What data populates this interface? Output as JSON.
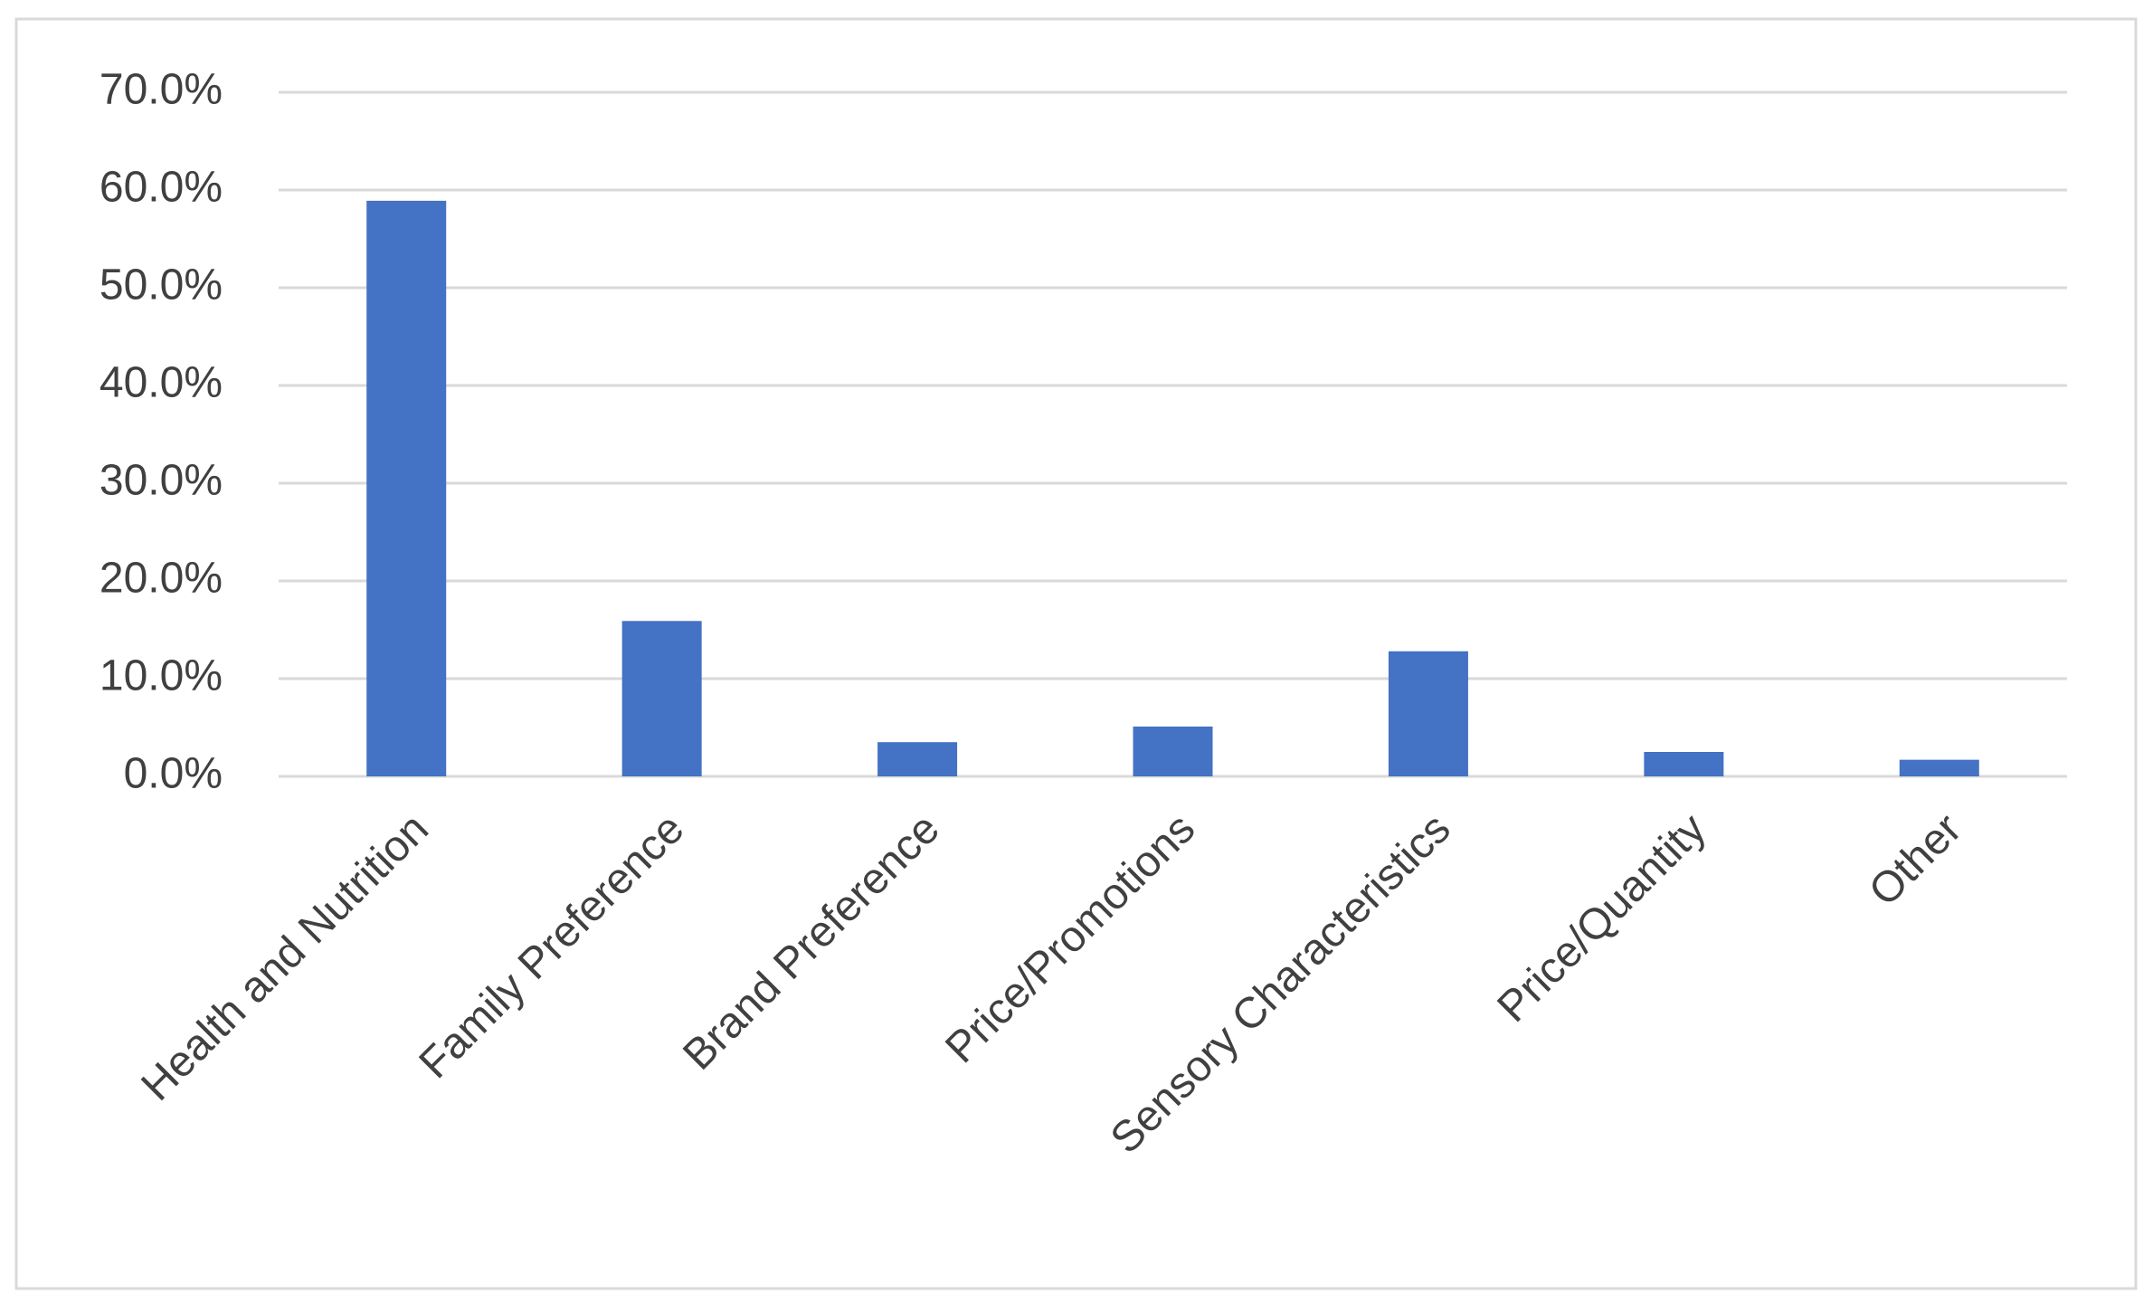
{
  "chart_data": {
    "type": "bar",
    "categories": [
      "Health and Nutrition",
      "Family Preference",
      "Brand Preference",
      "Price/Promotions",
      "Sensory Characteristics",
      "Price/Quantity",
      "Other"
    ],
    "values": [
      58.9,
      15.9,
      3.5,
      5.1,
      12.8,
      2.5,
      1.7
    ],
    "color": "#4472c4",
    "ylim": [
      0,
      70
    ],
    "yticks": [
      {
        "value": 0,
        "label": "0.0%"
      },
      {
        "value": 10,
        "label": "10.0%"
      },
      {
        "value": 20,
        "label": "20.0%"
      },
      {
        "value": 30,
        "label": "30.0%"
      },
      {
        "value": 40,
        "label": "40.0%"
      },
      {
        "value": 50,
        "label": "50.0%"
      },
      {
        "value": 60,
        "label": "60.0%"
      },
      {
        "value": 70,
        "label": "70.0%"
      }
    ],
    "grid": true
  }
}
